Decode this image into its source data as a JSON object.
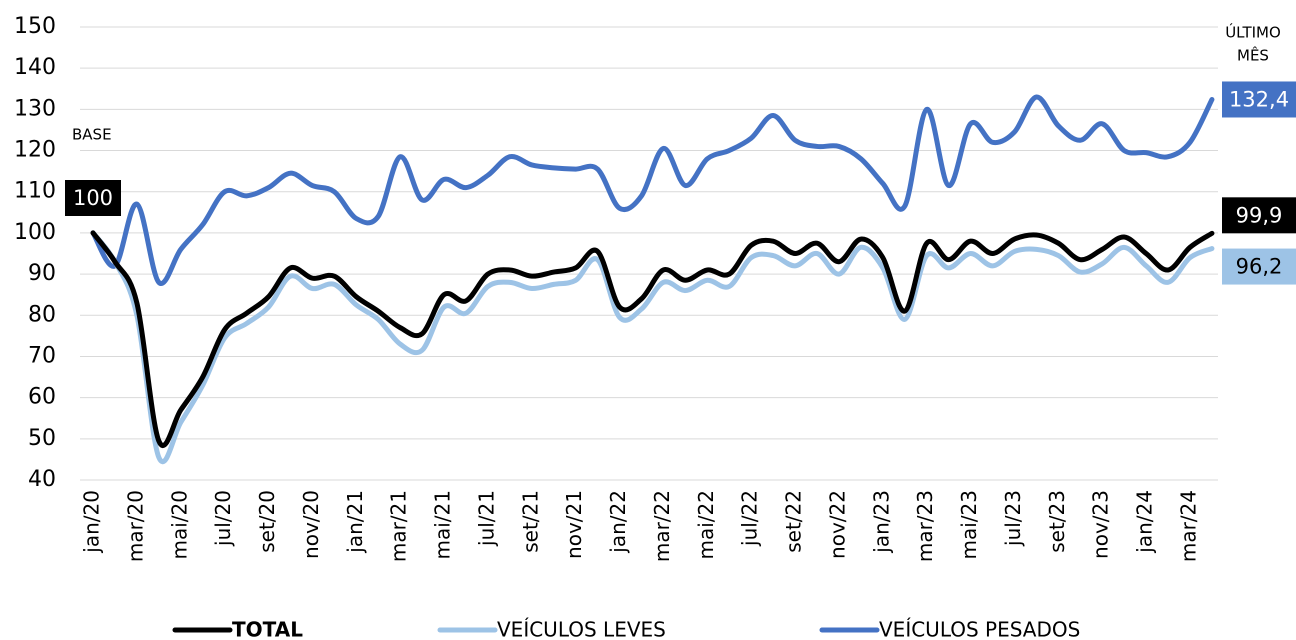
{
  "chart_data": {
    "type": "line",
    "categories": [
      "jan/20",
      null,
      "mar/20",
      null,
      "mai/20",
      null,
      "jul/20",
      null,
      "set/20",
      null,
      "nov/20",
      null,
      "jan/21",
      null,
      "mar/21",
      null,
      "mai/21",
      null,
      "jul/21",
      null,
      "set/21",
      null,
      "nov/21",
      null,
      "jan/22",
      null,
      "mar/22",
      null,
      "mai/22",
      null,
      "jul/22",
      null,
      "set/22",
      null,
      "nov/22",
      null,
      "jan/23",
      null,
      "mar/23",
      null,
      "mai/23",
      null,
      "jul/23",
      null,
      "set/23",
      null,
      "nov/23",
      null,
      "jan/24",
      null,
      "mar/24",
      null
    ],
    "series": [
      {
        "name": "TOTAL",
        "color": "#000000",
        "values": [
          100,
          93,
          83,
          49.5,
          57,
          65,
          76.5,
          80.5,
          84.5,
          91.5,
          89,
          89.5,
          84.5,
          81,
          77,
          75.5,
          85,
          83.5,
          90,
          91,
          89.5,
          90.5,
          91.5,
          95.5,
          82,
          84,
          91,
          88.5,
          91,
          90,
          97,
          98,
          95,
          97.5,
          93,
          98.5,
          94,
          81,
          97.5,
          93.5,
          98,
          95,
          98.5,
          99.5,
          97.5,
          93.5,
          96,
          99,
          95,
          91,
          96.5,
          99.9
        ],
        "value_labels": [
          null,
          null,
          null,
          null,
          null,
          null,
          null,
          null,
          null,
          null,
          null,
          null,
          null,
          null,
          null,
          null,
          null,
          null,
          null,
          null,
          null,
          null,
          null,
          null,
          null,
          null,
          null,
          null,
          null,
          null,
          null,
          null,
          null,
          null,
          null,
          null,
          null,
          null,
          null,
          null,
          null,
          null,
          null,
          null,
          null,
          null,
          null,
          null,
          null,
          null,
          null,
          "99,9"
        ]
      },
      {
        "name": "VEÍCULOS LEVES",
        "color": "#9dc3e6",
        "values": [
          100,
          93,
          80,
          45.5,
          54,
          63,
          74.5,
          78,
          82,
          89.5,
          86.5,
          87.5,
          82.5,
          79,
          73,
          71.5,
          82,
          80.5,
          87,
          88,
          86.5,
          87.5,
          88.5,
          93.5,
          79.5,
          81.5,
          88,
          86,
          88.5,
          87,
          94,
          94.5,
          92,
          95,
          90,
          96.5,
          91.5,
          79,
          94.5,
          91.5,
          95,
          92,
          95.5,
          96,
          94.5,
          90.5,
          92.5,
          96.5,
          92,
          88,
          94,
          96.2
        ],
        "value_labels": [
          null,
          null,
          null,
          null,
          null,
          null,
          null,
          null,
          null,
          null,
          null,
          null,
          null,
          null,
          null,
          null,
          null,
          null,
          null,
          null,
          null,
          null,
          null,
          null,
          null,
          null,
          null,
          null,
          null,
          null,
          null,
          null,
          null,
          null,
          null,
          null,
          null,
          null,
          null,
          null,
          null,
          null,
          null,
          null,
          null,
          null,
          null,
          null,
          null,
          null,
          null,
          "96,2"
        ]
      },
      {
        "name": "VEÍCULOS PESADOS",
        "color": "#4472c4",
        "values": [
          100,
          92,
          107,
          88,
          96,
          102,
          110,
          109,
          111,
          114.5,
          111.5,
          110,
          103.5,
          104,
          118.5,
          108,
          113,
          111,
          114,
          118.5,
          116.5,
          115.8,
          115.5,
          115.5,
          106,
          109,
          120.5,
          111.5,
          118,
          120,
          123,
          128.5,
          122.5,
          121,
          121,
          118,
          112,
          106.5,
          130,
          111.5,
          126.5,
          122,
          124.5,
          133,
          126,
          122.5,
          126.5,
          120,
          119.5,
          118.5,
          122,
          132.4
        ],
        "value_labels": [
          null,
          null,
          null,
          null,
          null,
          null,
          null,
          null,
          null,
          null,
          null,
          null,
          null,
          null,
          null,
          null,
          null,
          null,
          null,
          null,
          null,
          null,
          null,
          null,
          null,
          null,
          null,
          null,
          null,
          null,
          null,
          null,
          null,
          null,
          null,
          null,
          null,
          null,
          null,
          null,
          null,
          null,
          null,
          null,
          null,
          null,
          null,
          null,
          null,
          null,
          null,
          "132,4"
        ]
      }
    ],
    "annotations": {
      "base": "BASE",
      "last_month": [
        "ÚLTIMO",
        "MÊS"
      ]
    },
    "ylim": [
      40,
      150
    ],
    "yticks": [
      40,
      50,
      60,
      70,
      80,
      90,
      100,
      110,
      120,
      130,
      140,
      150
    ],
    "grid": true
  }
}
